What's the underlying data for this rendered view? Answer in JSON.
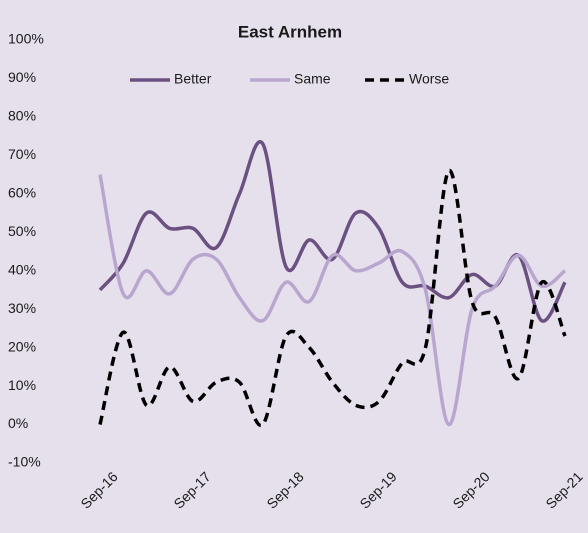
{
  "chart_data": {
    "type": "line",
    "title": "East Arnhem",
    "categories": [
      "Sep-16",
      null,
      null,
      null,
      "Sep-17",
      null,
      null,
      null,
      "Sep-18",
      null,
      null,
      null,
      "Sep-19",
      null,
      null,
      null,
      "Sep-20",
      null,
      null,
      null,
      "Sep-21"
    ],
    "series": [
      {
        "name": "Better",
        "color": "#6b5182",
        "dash": false,
        "values": [
          35,
          42,
          55,
          51,
          51,
          46,
          60,
          73,
          41,
          48,
          43,
          55,
          51,
          37,
          36,
          33,
          39,
          36,
          44,
          27,
          37
        ]
      },
      {
        "name": "Same",
        "color": "#b8a6cf",
        "dash": false,
        "values": [
          65,
          34,
          40,
          34,
          43,
          43,
          33,
          27,
          37,
          32,
          44,
          40,
          42,
          45,
          35,
          0,
          30,
          36,
          44,
          36,
          40
        ]
      },
      {
        "name": "Worse",
        "color": "#000000",
        "dash": true,
        "values": [
          0,
          24,
          5,
          15,
          6,
          11,
          11,
          0,
          23,
          20,
          11,
          5,
          6,
          16,
          20,
          66,
          32,
          28,
          12,
          37,
          23
        ]
      }
    ],
    "ylim": [
      -10,
      100
    ],
    "yticks": [
      {
        "value": -10,
        "label": "-10%"
      },
      {
        "value": 0,
        "label": "0%"
      },
      {
        "value": 10,
        "label": "10%"
      },
      {
        "value": 20,
        "label": "20%"
      },
      {
        "value": 30,
        "label": "30%"
      },
      {
        "value": 40,
        "label": "40%"
      },
      {
        "value": 50,
        "label": "50%"
      },
      {
        "value": 60,
        "label": "60%"
      },
      {
        "value": 70,
        "label": "70%"
      },
      {
        "value": 80,
        "label": "80%"
      },
      {
        "value": 90,
        "label": "90%"
      },
      {
        "value": 100,
        "label": "100%"
      }
    ],
    "legend": "top"
  }
}
